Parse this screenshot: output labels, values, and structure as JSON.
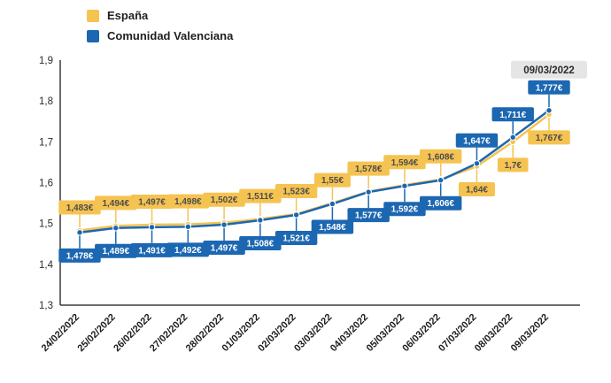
{
  "legend": {
    "items": [
      {
        "label": "España",
        "color": "#F5C351"
      },
      {
        "label": "Comunidad Valenciana",
        "color": "#1C67B1"
      }
    ]
  },
  "annotation": {
    "label": "09/03/2022"
  },
  "chart_data": {
    "type": "line",
    "title": "",
    "xlabel": "",
    "ylabel": "",
    "ylim": [
      1.3,
      1.9
    ],
    "yticks": [
      1.3,
      1.4,
      1.5,
      1.6,
      1.7,
      1.8,
      1.9
    ],
    "ytick_labels": [
      "1,3",
      "1,4",
      "1,5",
      "1,6",
      "1,7",
      "1,8",
      "1,9"
    ],
    "x": [
      "24/02/2022",
      "25/02/2022",
      "26/02/2022",
      "27/02/2022",
      "28/02/2022",
      "01/03/2022",
      "02/03/2022",
      "03/03/2022",
      "04/03/2022",
      "05/03/2022",
      "06/03/2022",
      "07/03/2022",
      "08/03/2022",
      "09/03/2022"
    ],
    "series": [
      {
        "name": "España",
        "color": "#F5C351",
        "label_text_color": "#4d4d4d",
        "values": [
          1.483,
          1.494,
          1.497,
          1.498,
          1.502,
          1.511,
          1.523,
          1.55,
          1.578,
          1.594,
          1.608,
          1.64,
          1.7,
          1.767
        ],
        "labels": [
          "1,483€",
          "1,494€",
          "1,497€",
          "1,498€",
          "1,502€",
          "1,511€",
          "1,523€",
          "1,55€",
          "1,578€",
          "1,594€",
          "1,608€",
          "1,64€",
          "1,7€",
          "1,767€"
        ]
      },
      {
        "name": "Comunidad Valenciana",
        "color": "#1C67B1",
        "label_text_color": "#ffffff",
        "values": [
          1.478,
          1.489,
          1.491,
          1.492,
          1.497,
          1.508,
          1.521,
          1.548,
          1.577,
          1.592,
          1.606,
          1.647,
          1.711,
          1.777
        ],
        "labels": [
          "1,478€",
          "1,489€",
          "1,491€",
          "1,492€",
          "1,497€",
          "1,508€",
          "1,521€",
          "1,548€",
          "1,577€",
          "1,592€",
          "1,606€",
          "1,647€",
          "1,711€",
          "1,777€"
        ]
      }
    ],
    "legend_position": "top-left",
    "grid": false
  }
}
